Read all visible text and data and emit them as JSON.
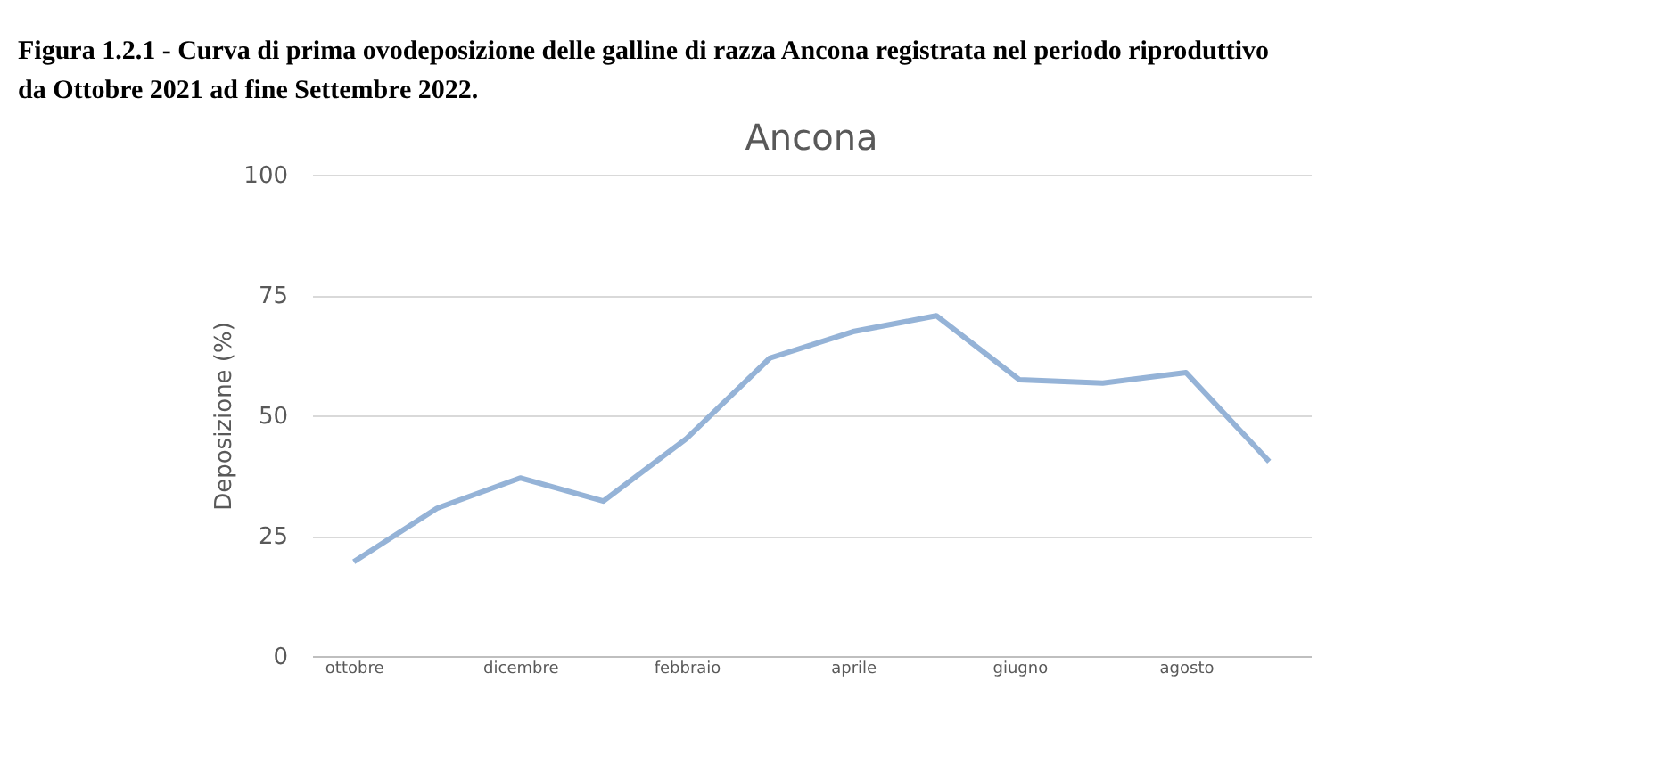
{
  "chart_data": {
    "type": "line",
    "title": "Ancona",
    "annotations": [
      "Figura 1.2.1 - Curva di prima ovodeposizione delle galline di razza Ancona registrata nel periodo riproduttivo da Ottobre 2021 ad fine Settembre 2022."
    ],
    "ylabel": "Deposizione (%)",
    "categories": [
      "ottobre",
      null,
      "dicembre",
      null,
      "febbraio",
      null,
      "aprile",
      null,
      "giugno",
      null,
      "agosto",
      null
    ],
    "series": [
      {
        "color": "#95b3d7",
        "values": [
          19.6,
          30.7,
          37,
          32.2,
          45.2,
          61.9,
          67.4,
          70.7,
          57.4,
          56.7,
          58.9,
          40.4
        ]
      }
    ],
    "ylim": [
      0,
      100
    ],
    "yticks": [
      0,
      25,
      50,
      75,
      100
    ],
    "grid": "y",
    "legend": false,
    "marker": "none",
    "line_style": "solid"
  }
}
